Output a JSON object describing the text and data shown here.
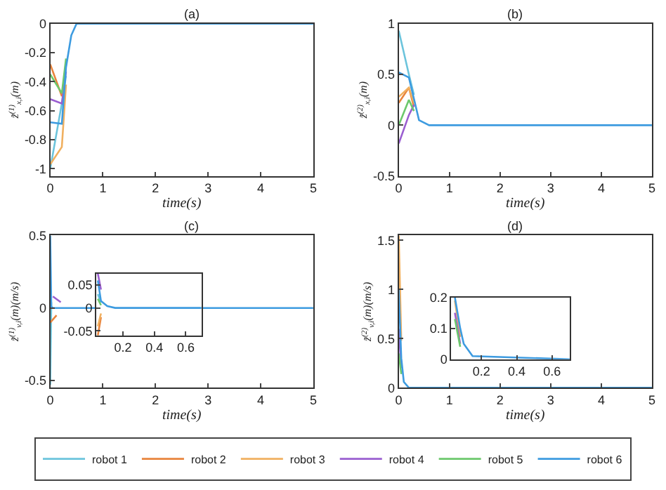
{
  "chart_data": [
    {
      "type": "line",
      "title": "(a)",
      "xlabel": "time(s)",
      "ylabel": "z̃$^{(1)}$$_{x,i}$(m)",
      "xlim": [
        0,
        5
      ],
      "ylim": [
        -1.05,
        0
      ],
      "xticks": [
        0,
        1,
        2,
        3,
        4,
        5
      ],
      "yticks": [
        -1,
        -0.8,
        -0.6,
        -0.4,
        -0.2,
        0
      ],
      "legend": "bottom",
      "x": [
        0,
        0.22,
        0.3,
        0.4,
        0.5,
        5
      ],
      "series": [
        {
          "name": "robot 1",
          "color": "#6cc4dc",
          "values": [
            -1.0,
            -0.55,
            -0.36,
            null,
            null,
            null
          ]
        },
        {
          "name": "robot 2",
          "color": "#e8843c",
          "values": [
            -0.28,
            -0.5,
            -0.28,
            null,
            null,
            null
          ]
        },
        {
          "name": "robot 3",
          "color": "#f0b060",
          "values": [
            -0.97,
            -0.85,
            -0.42,
            null,
            null,
            null
          ]
        },
        {
          "name": "robot 4",
          "color": "#9a5ed0",
          "values": [
            -0.52,
            -0.55,
            -0.33,
            null,
            null,
            null
          ]
        },
        {
          "name": "robot 5",
          "color": "#6cc86c",
          "values": [
            -0.35,
            -0.48,
            -0.24,
            null,
            null,
            null
          ]
        },
        {
          "name": "robot 6",
          "color": "#3d9be0",
          "values": [
            -0.68,
            -0.69,
            -0.3,
            -0.08,
            0,
            0
          ]
        }
      ]
    },
    {
      "type": "line",
      "title": "(b)",
      "xlabel": "time(s)",
      "ylabel": "z̃$^{(2)}$$_{x,i}$(m)",
      "xlim": [
        0,
        5
      ],
      "ylim": [
        -0.5,
        1
      ],
      "xticks": [
        0,
        1,
        2,
        3,
        4,
        5
      ],
      "yticks": [
        -0.5,
        0,
        0.5,
        1
      ],
      "x": [
        0,
        0.2,
        0.3,
        0.4,
        0.6,
        5
      ],
      "series": [
        {
          "color": "#6cc4dc",
          "values": [
            0.93,
            0.5,
            0.3,
            null,
            null,
            null
          ]
        },
        {
          "color": "#e8843c",
          "values": [
            0.22,
            0.37,
            0.18,
            null,
            null,
            null
          ]
        },
        {
          "color": "#f0b060",
          "values": [
            0.28,
            0.37,
            0.22,
            null,
            null,
            null
          ]
        },
        {
          "color": "#9a5ed0",
          "values": [
            -0.18,
            0.1,
            0.2,
            null,
            null,
            null
          ]
        },
        {
          "color": "#6cc86c",
          "values": [
            0,
            0.25,
            0.14,
            null,
            null,
            null
          ]
        },
        {
          "color": "#3d9be0",
          "values": [
            0.52,
            0.47,
            0.26,
            0.05,
            0,
            0
          ]
        }
      ]
    },
    {
      "type": "line",
      "title": "(c)",
      "xlabel": "time(s)",
      "ylabel": "z̃$^{(1)}$$_{v,i}$(m)(m/s)",
      "xlim": [
        0,
        5
      ],
      "ylim": [
        -0.55,
        0.5
      ],
      "xticks": [
        0,
        1,
        2,
        3,
        4,
        5
      ],
      "yticks": [
        -0.5,
        0,
        0.5
      ],
      "x": [
        0,
        0.02,
        0.05,
        5
      ],
      "series": [
        {
          "color": "#6cc4dc",
          "values": [
            -0.53,
            0.04,
            null,
            null
          ]
        },
        {
          "color": "#e8843c",
          "x": [
            0,
            0.12
          ],
          "values": [
            -0.1,
            -0.05
          ]
        },
        {
          "color": "#9a5ed0",
          "x": [
            0.05,
            0.2
          ],
          "values": [
            0.08,
            0.04
          ]
        },
        {
          "color": "#3d9be0",
          "values": [
            0.5,
            0.01,
            0,
            0
          ]
        }
      ]
    },
    {
      "type": "line",
      "xlim": [
        0.03,
        0.7
      ],
      "ylim": [
        -0.06,
        0.075
      ],
      "xticks": [
        0.2,
        0.4,
        0.6
      ],
      "yticks": [
        -0.05,
        0,
        0.05
      ],
      "x": [
        0.04,
        0.06,
        0.1,
        0.15,
        0.7
      ],
      "series": [
        {
          "color": "#6cc4dc",
          "values": [
            0.03,
            0.012,
            null,
            null,
            null
          ]
        },
        {
          "color": "#e8843c",
          "values": [
            -0.06,
            -0.02,
            null,
            null,
            null
          ]
        },
        {
          "color": "#f0b060",
          "values": [
            -0.04,
            -0.012,
            null,
            null,
            null
          ]
        },
        {
          "color": "#9a5ed0",
          "values": [
            0.075,
            0.04,
            null,
            null,
            null
          ]
        },
        {
          "color": "#6cc86c",
          "values": [
            0.02,
            0.006,
            null,
            null,
            null
          ]
        },
        {
          "color": "#3d9be0",
          "values": [
            0.06,
            0.015,
            0.004,
            0,
            0
          ]
        }
      ]
    },
    {
      "type": "line",
      "title": "(d)",
      "xlabel": "time(s)",
      "ylabel": "z̃$^{(2)}$$_{v,i}$(m)(m/s)",
      "xlim": [
        0,
        5
      ],
      "ylim": [
        0,
        1.55
      ],
      "xticks": [
        0,
        1,
        2,
        3,
        4,
        5
      ],
      "yticks": [
        0,
        0.5,
        1,
        1.5
      ],
      "x": [
        0,
        0.05,
        0.1,
        0.2,
        5
      ],
      "series": [
        {
          "color": "#f0b060",
          "values": [
            1.55,
            0.48,
            null,
            null,
            null
          ]
        },
        {
          "color": "#9a5ed0",
          "values": [
            0.6,
            0.2,
            null,
            null,
            null
          ]
        },
        {
          "color": "#6cc86c",
          "values": [
            0.35,
            0.14,
            null,
            null,
            null
          ]
        },
        {
          "color": "#3d9be0",
          "values": [
            1.0,
            0.3,
            0.06,
            0,
            0
          ]
        }
      ]
    },
    {
      "type": "line",
      "xlim": [
        0.03,
        0.7
      ],
      "ylim": [
        0,
        0.2
      ],
      "xticks": [
        0.2,
        0.4,
        0.6
      ],
      "yticks": [
        0,
        0.1,
        0.2
      ],
      "x": [
        0.05,
        0.08,
        0.1,
        0.15,
        0.7
      ],
      "series": [
        {
          "color": "#f0b060",
          "values": [
            0.19,
            0.072,
            null,
            null,
            null
          ]
        },
        {
          "color": "#9a5ed0",
          "values": [
            0.15,
            0.05,
            null,
            null,
            null
          ]
        },
        {
          "color": "#6cc86c",
          "values": [
            0.13,
            0.04,
            null,
            null,
            null
          ]
        },
        {
          "color": "#3d9be0",
          "values": [
            0.2,
            0.1,
            0.05,
            0.01,
            0
          ]
        }
      ]
    }
  ]
}
